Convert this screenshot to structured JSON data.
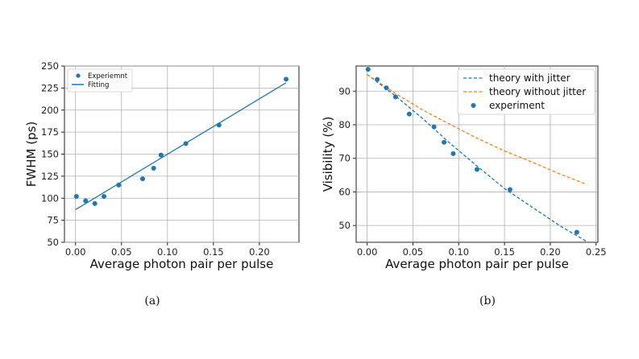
{
  "chart_data": [
    {
      "id": "a",
      "type": "scatter",
      "caption": "(a)",
      "xlabel": "Average photon pair per pulse",
      "ylabel": "FWHM (ps)",
      "xlim": [
        -0.012,
        0.243
      ],
      "ylim": [
        50,
        250
      ],
      "xticks": [
        0.0,
        0.05,
        0.1,
        0.15,
        0.2
      ],
      "xtick_labels": [
        "0.00",
        "0.05",
        "0.10",
        "0.15",
        "0.20"
      ],
      "yticks": [
        50,
        75,
        100,
        125,
        150,
        175,
        200,
        225,
        250
      ],
      "ytick_labels": [
        "50",
        "75",
        "100",
        "125",
        "150",
        "175",
        "200",
        "225",
        "250"
      ],
      "grid": true,
      "legend_position": "top-left",
      "series": [
        {
          "name": "Experiemnt",
          "kind": "points",
          "color": "#1f77b4",
          "x": [
            0.001,
            0.011,
            0.021,
            0.031,
            0.047,
            0.073,
            0.085,
            0.093,
            0.12,
            0.156,
            0.229
          ],
          "y": [
            102,
            97,
            94,
            102,
            115,
            122,
            134,
            149,
            162,
            183,
            235
          ]
        },
        {
          "name": "Fitting",
          "kind": "line",
          "color": "#1f77b4",
          "x": [
            0.0,
            0.229
          ],
          "y": [
            87,
            231
          ]
        }
      ]
    },
    {
      "id": "b",
      "type": "scatter",
      "caption": "(b)",
      "xlabel": "Average photon pair per pulse",
      "ylabel": "Visibility (%)",
      "xlim": [
        -0.012,
        0.252
      ],
      "ylim": [
        45,
        97.5
      ],
      "xticks": [
        0.0,
        0.05,
        0.1,
        0.15,
        0.2,
        0.25
      ],
      "xtick_labels": [
        "0.00",
        "0.05",
        "0.10",
        "0.15",
        "0.20",
        "0.25"
      ],
      "yticks": [
        50,
        60,
        70,
        80,
        90
      ],
      "ytick_labels": [
        "50",
        "60",
        "70",
        "80",
        "90"
      ],
      "grid": true,
      "legend_position": "top-right",
      "series": [
        {
          "name": "theory with jitter",
          "kind": "dashed-line",
          "color": "#1f77b4",
          "x": [
            0.0,
            0.03,
            0.06,
            0.09,
            0.12,
            0.15,
            0.18,
            0.21,
            0.24
          ],
          "y": [
            95.0,
            88.8,
            82.0,
            74.6,
            67.7,
            61.0,
            55.5,
            50.0,
            45.2
          ]
        },
        {
          "name": "theory without jitter",
          "kind": "dashed-line",
          "color": "#ff7f0e",
          "x": [
            0.0,
            0.03,
            0.06,
            0.09,
            0.12,
            0.15,
            0.18,
            0.21,
            0.24
          ],
          "y": [
            95.0,
            89.5,
            84.5,
            80.2,
            76.0,
            72.2,
            68.9,
            65.4,
            62.2
          ]
        },
        {
          "name": "experiment",
          "kind": "points",
          "color": "#1f77b4",
          "x": [
            0.001,
            0.011,
            0.021,
            0.031,
            0.046,
            0.073,
            0.084,
            0.094,
            0.12,
            0.156,
            0.229
          ],
          "y": [
            96.5,
            93.5,
            91.0,
            88.3,
            83.2,
            79.4,
            74.8,
            71.4,
            66.7,
            60.7,
            48.0
          ]
        }
      ]
    }
  ]
}
